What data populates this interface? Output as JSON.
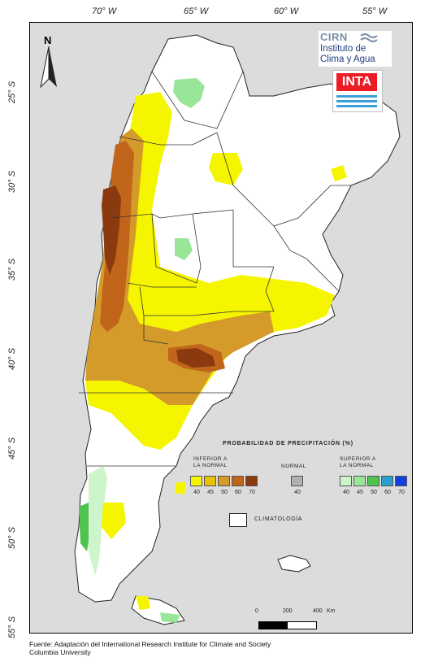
{
  "map": {
    "longitudes": [
      "70° W",
      "65° W",
      "60° W",
      "55° W"
    ],
    "latitudes": [
      "25° S",
      "30° S",
      "35° S",
      "40° S",
      "45° S",
      "50° S",
      "55° S"
    ],
    "north_label": "N"
  },
  "logos": {
    "cirn_title": "CIRN",
    "cirn_line1": "Instituto de",
    "cirn_line2": "Clima y Agua",
    "inta": "INTA"
  },
  "legend": {
    "title": "PROBABILIDAD DE PRECIPITACIÓN (%)",
    "inferior_label_1": "INFERIOR A",
    "inferior_label_2": "LA NORMAL",
    "normal_label": "NORMAL",
    "superior_label_1": "SUPERIOR A",
    "superior_label_2": "LA NORMAL",
    "inferior_ticks": [
      "40",
      "45",
      "50",
      "60",
      "70"
    ],
    "normal_tick": "40",
    "superior_ticks": [
      "40",
      "45",
      "50",
      "60",
      "70"
    ],
    "climatology_label": "CLIMATOLOGÍA",
    "colors": {
      "inferior": [
        "#f5f500",
        "#e8c200",
        "#d49a2a",
        "#c0651a",
        "#8a3a0e"
      ],
      "normal": "#b0b0b0",
      "superior": [
        "#ccf5cc",
        "#99e699",
        "#4fc24f",
        "#2aa0d0",
        "#1040e0"
      ]
    }
  },
  "scale": {
    "ticks": [
      "0",
      "200",
      "400",
      "Km"
    ]
  },
  "source": {
    "line1": "Fuente: Adaptación del International Research Institute for Climate and Society",
    "line2": "Columbia University"
  }
}
